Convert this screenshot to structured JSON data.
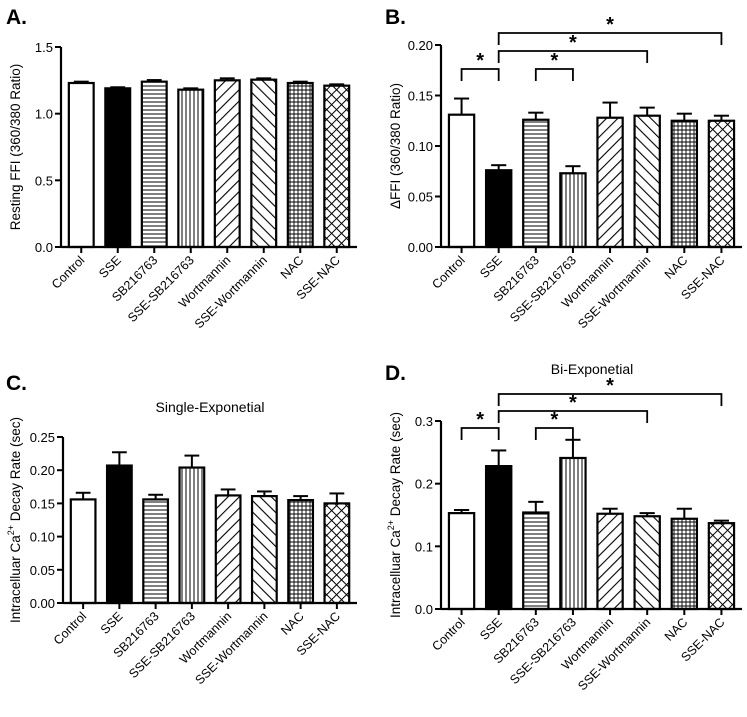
{
  "chart_data": [
    {
      "panel": "A.",
      "type": "bar",
      "title": "",
      "ylabel_parts": [
        {
          "text": "Resting FFI (360/380 Ratio)"
        }
      ],
      "ylim": [
        0,
        1.5
      ],
      "yticks": [
        "0.0",
        "0.5",
        "1.0",
        "1.5"
      ],
      "ytick_values": [
        0,
        0.5,
        1.0,
        1.5
      ],
      "categories": [
        "Control",
        "SSE",
        "SB216763",
        "SSE-SB216763",
        "Wortmannin",
        "SSE-Wortmannin",
        "NAC",
        "SSE-NAC"
      ],
      "values": [
        1.23,
        1.19,
        1.24,
        1.18,
        1.25,
        1.255,
        1.23,
        1.21
      ],
      "errors": [
        0.01,
        0.008,
        0.012,
        0.01,
        0.015,
        0.01,
        0.01,
        0.01
      ],
      "significance": []
    },
    {
      "panel": "B.",
      "type": "bar",
      "title": "",
      "ylabel_parts": [
        {
          "text": "ΔFFI (360/380 Ratio)"
        }
      ],
      "ylim": [
        0,
        0.2
      ],
      "yticks": [
        "0.00",
        "0.05",
        "0.10",
        "0.15",
        "0.20"
      ],
      "ytick_values": [
        0,
        0.05,
        0.1,
        0.15,
        0.2
      ],
      "categories": [
        "Control",
        "SSE",
        "SB216763",
        "SSE-SB216763",
        "Wortmannin",
        "SSE-Wortmannin",
        "NAC",
        "SSE-NAC"
      ],
      "values": [
        0.131,
        0.076,
        0.126,
        0.073,
        0.128,
        0.13,
        0.125,
        0.125
      ],
      "errors": [
        0.016,
        0.005,
        0.007,
        0.007,
        0.015,
        0.008,
        0.007,
        0.005
      ],
      "significance": [
        {
          "pair": [
            0,
            1
          ],
          "label": "*"
        },
        {
          "pair": [
            2,
            3
          ],
          "label": "*"
        },
        {
          "pair": [
            1,
            5
          ],
          "label": "*"
        },
        {
          "pair": [
            1,
            7
          ],
          "label": "*"
        }
      ]
    },
    {
      "panel": "C.",
      "type": "bar",
      "title": "Single-Exponetial",
      "ylabel_parts": [
        {
          "text": "Intracelluar Ca"
        },
        {
          "text": "2+",
          "sup": true
        },
        {
          "text": " Decay Rate (sec)"
        }
      ],
      "ylim": [
        0,
        0.25
      ],
      "yticks": [
        "0.00",
        "0.05",
        "0.10",
        "0.15",
        "0.20",
        "0.25"
      ],
      "ytick_values": [
        0,
        0.05,
        0.1,
        0.15,
        0.2,
        0.25
      ],
      "categories": [
        "Control",
        "SSE",
        "SB216763",
        "SSE-SB216763",
        "Wortmannin",
        "SSE-Wortmannin",
        "NAC",
        "SSE-NAC"
      ],
      "values": [
        0.156,
        0.207,
        0.156,
        0.204,
        0.162,
        0.161,
        0.155,
        0.15
      ],
      "errors": [
        0.01,
        0.02,
        0.007,
        0.018,
        0.009,
        0.007,
        0.006,
        0.015
      ],
      "significance": []
    },
    {
      "panel": "D.",
      "type": "bar",
      "title": "Bi-Exponetial",
      "ylabel_parts": [
        {
          "text": "Intracelluar Ca"
        },
        {
          "text": "2+",
          "sup": true
        },
        {
          "text": " Decay Rate (sec)"
        }
      ],
      "ylim": [
        0,
        0.3
      ],
      "yticks": [
        "0.0",
        "0.1",
        "0.2",
        "0.3"
      ],
      "ytick_values": [
        0,
        0.1,
        0.2,
        0.3
      ],
      "categories": [
        "Control",
        "SSE",
        "SB216763",
        "SSE-SB216763",
        "Wortmannin",
        "SSE-Wortmannin",
        "NAC",
        "SSE-NAC"
      ],
      "values": [
        0.153,
        0.228,
        0.154,
        0.241,
        0.152,
        0.148,
        0.144,
        0.137
      ],
      "errors": [
        0.005,
        0.025,
        0.017,
        0.029,
        0.008,
        0.005,
        0.016,
        0.004
      ],
      "significance": [
        {
          "pair": [
            0,
            1
          ],
          "label": "*"
        },
        {
          "pair": [
            2,
            3
          ],
          "label": "*"
        },
        {
          "pair": [
            1,
            5
          ],
          "label": "*"
        },
        {
          "pair": [
            1,
            7
          ],
          "label": "*"
        }
      ]
    }
  ],
  "bar_fills": [
    "white",
    "black",
    "horizontal-lines",
    "vertical-lines",
    "diagonal-forward",
    "diagonal-back",
    "grid",
    "crosshatch"
  ],
  "colors": {
    "ink": "#000000",
    "background": "#ffffff"
  }
}
